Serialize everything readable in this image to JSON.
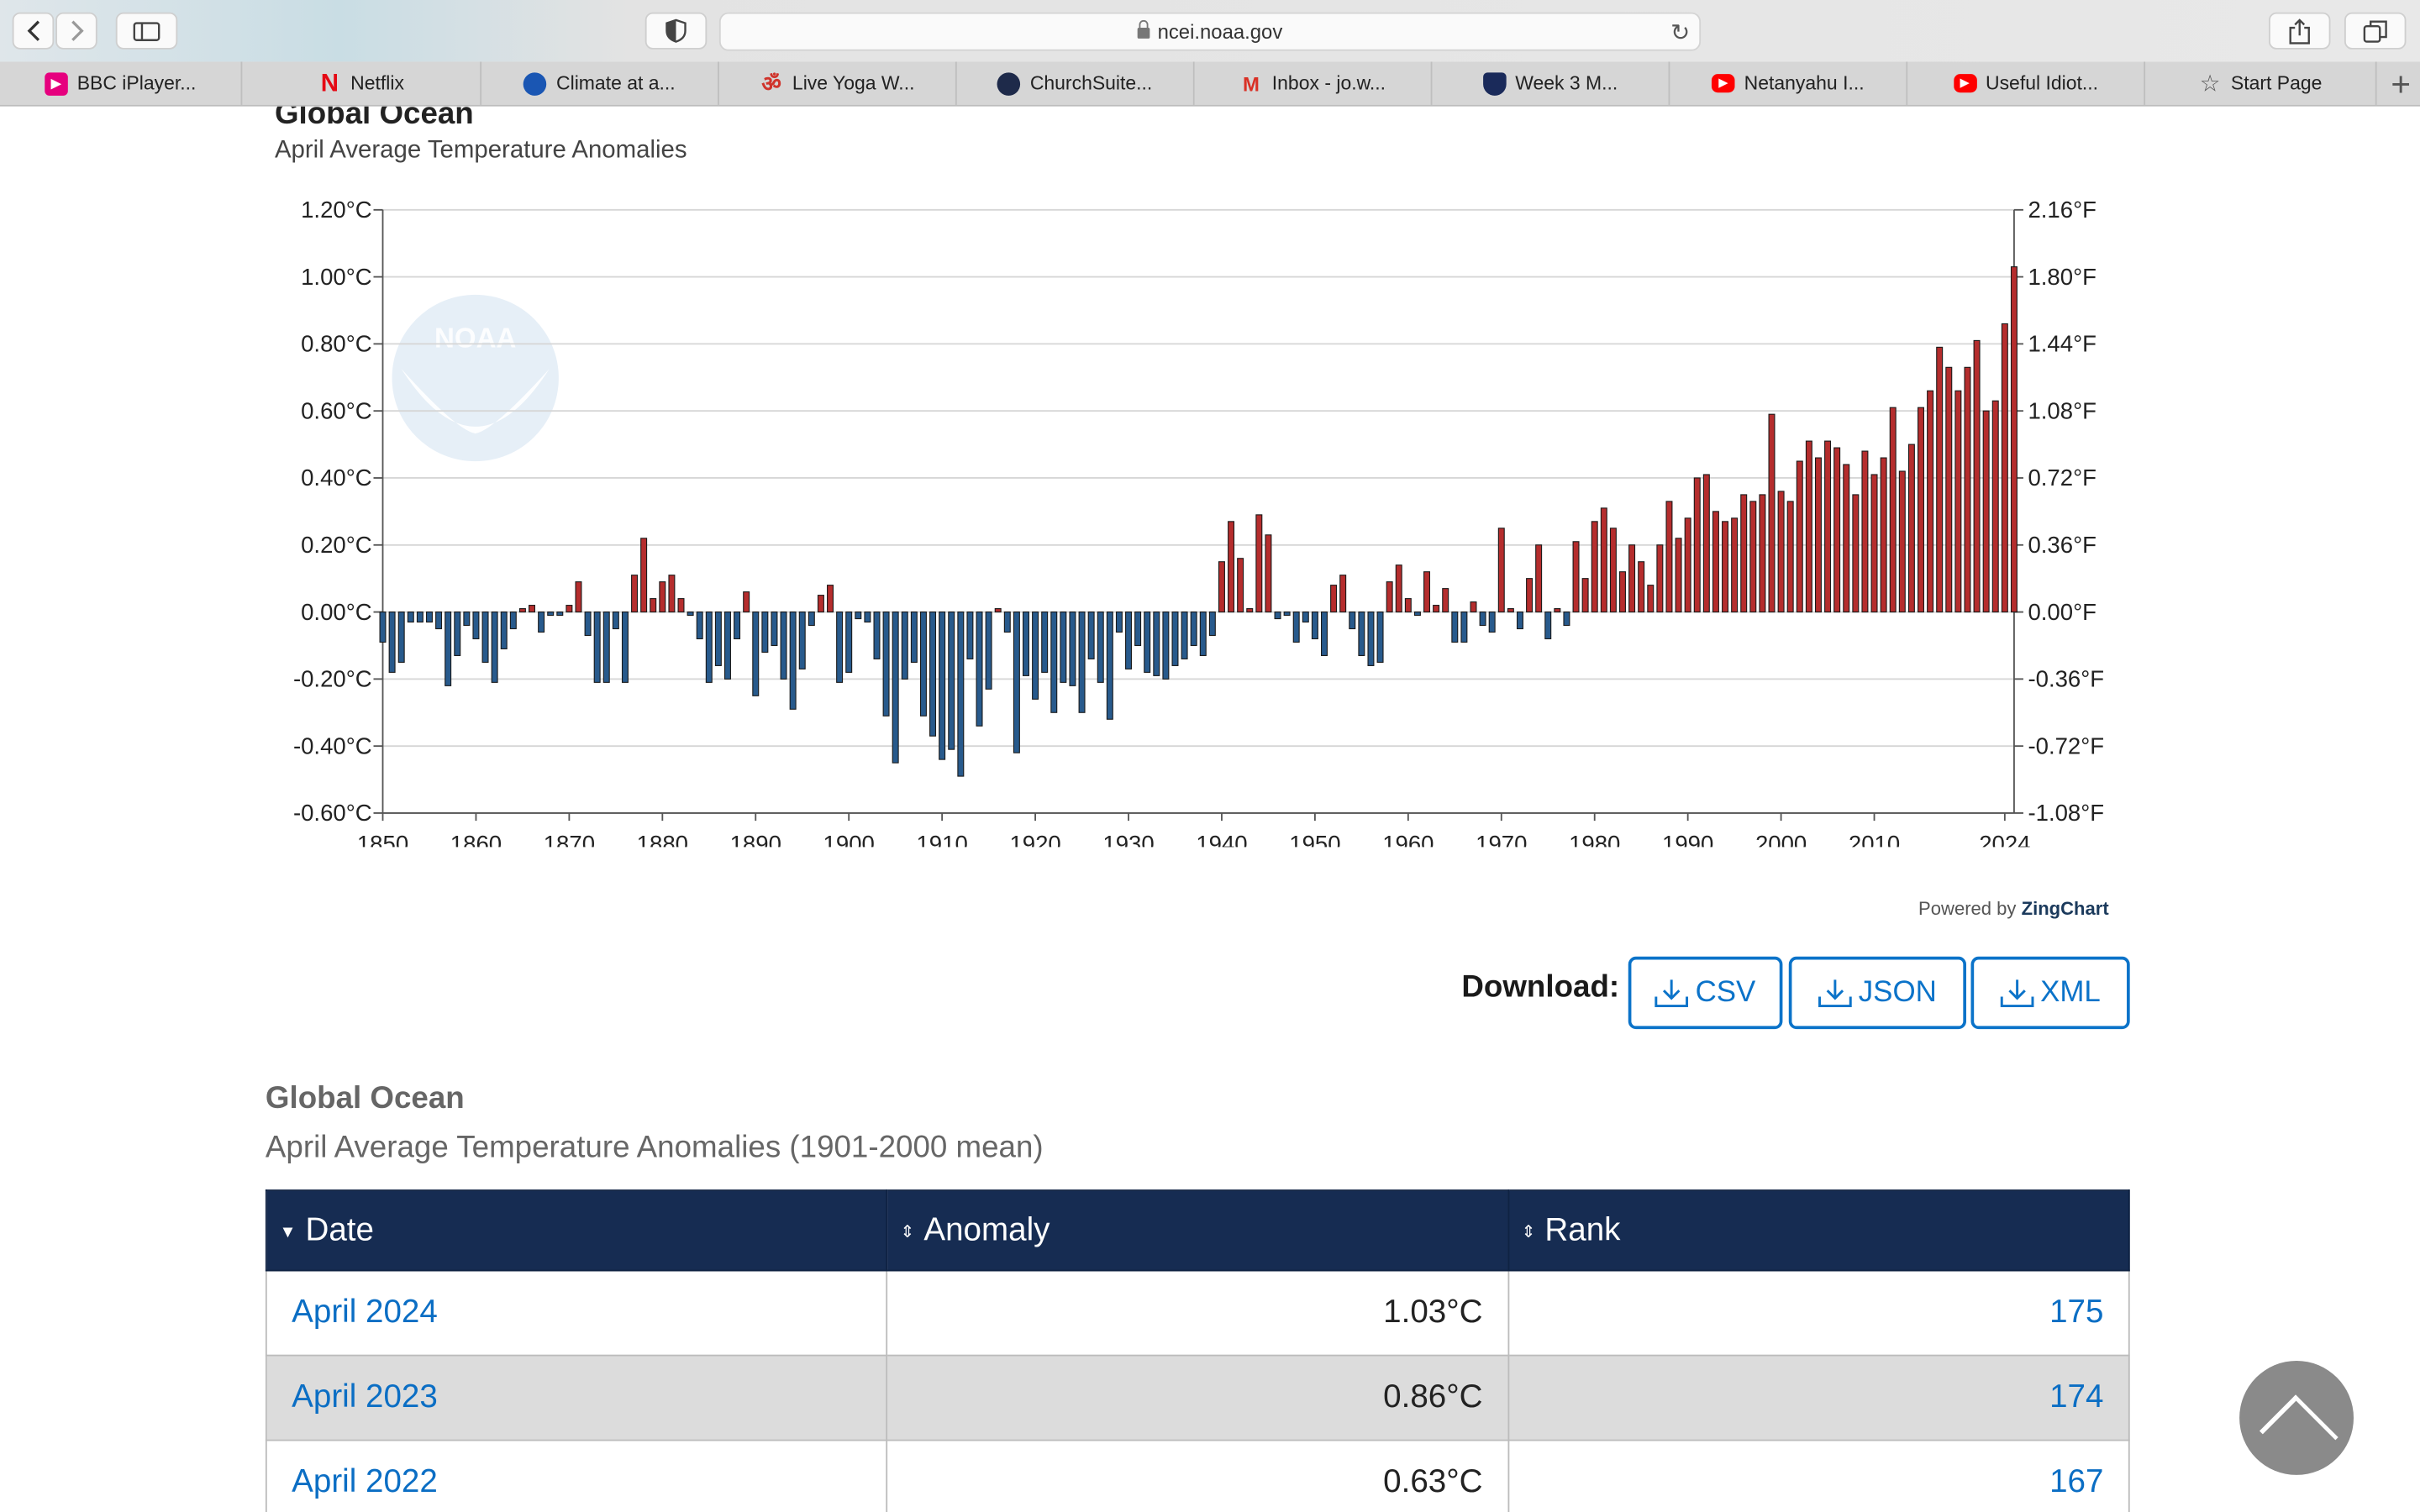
{
  "browser": {
    "url": "ncei.noaa.gov",
    "tabs": [
      {
        "label": "BBC iPlayer...",
        "icon": "bbc-iplayer-icon",
        "color": "#e6007e"
      },
      {
        "label": "Netflix",
        "icon": "netflix-icon",
        "color": "#e50914"
      },
      {
        "label": "Climate at a...",
        "icon": "noaa-icon",
        "color": "#1a56b3"
      },
      {
        "label": "Live Yoga W...",
        "icon": "om-icon",
        "color": "#d0342c"
      },
      {
        "label": "ChurchSuite...",
        "icon": "churchsuite-icon",
        "color": "#1e2a4a"
      },
      {
        "label": "Inbox - jo.w...",
        "icon": "gmail-icon",
        "color": "#d93025"
      },
      {
        "label": "Week 3    M...",
        "icon": "shield-icon",
        "color": "#1a2a5a"
      },
      {
        "label": "Netanyahu I...",
        "icon": "youtube-icon",
        "color": "#ff0000"
      },
      {
        "label": "Useful Idiot...",
        "icon": "youtube-icon",
        "color": "#ff0000"
      },
      {
        "label": "Start Page",
        "icon": "star-icon",
        "color": "#555555"
      }
    ]
  },
  "chart": {
    "title": "Global Ocean",
    "subtitle": "April Average Temperature Anomalies",
    "logo_text": "NOAA",
    "powered_prefix": "Powered by",
    "powered_brand": "ZingChart"
  },
  "chart_data": {
    "type": "bar",
    "title": "Global Ocean",
    "subtitle": "April Average Temperature Anomalies",
    "ylim": [
      -0.6,
      1.2
    ],
    "yticks_left": [
      "1.20°C",
      "1.00°C",
      "0.80°C",
      "0.60°C",
      "0.40°C",
      "0.20°C",
      "0.00°C",
      "-0.20°C",
      "-0.40°C",
      "-0.60°C"
    ],
    "yticks_right": [
      "2.16°F",
      "1.80°F",
      "1.44°F",
      "1.08°F",
      "0.72°F",
      "0.36°F",
      "0.00°F",
      "-0.36°F",
      "-0.72°F",
      "-1.08°F"
    ],
    "xticks": [
      "1850",
      "1860",
      "1870",
      "1880",
      "1890",
      "1900",
      "1910",
      "1920",
      "1930",
      "1940",
      "1950",
      "1960",
      "1970",
      "1980",
      "1990",
      "2000",
      "2010",
      "2024"
    ],
    "x_start": 1850,
    "x_end": 2024,
    "positive_color": "#b52d2d",
    "negative_color": "#285a8c",
    "grid": true,
    "values": [
      -0.09,
      -0.18,
      -0.15,
      -0.03,
      -0.03,
      -0.03,
      -0.05,
      -0.22,
      -0.13,
      -0.04,
      -0.08,
      -0.15,
      -0.21,
      -0.11,
      -0.05,
      0.01,
      0.02,
      -0.06,
      -0.01,
      -0.01,
      0.02,
      0.09,
      -0.07,
      -0.21,
      -0.21,
      -0.05,
      -0.21,
      0.11,
      0.22,
      0.04,
      0.09,
      0.11,
      0.04,
      -0.01,
      -0.08,
      -0.21,
      -0.16,
      -0.2,
      -0.08,
      0.06,
      -0.25,
      -0.12,
      -0.1,
      -0.2,
      -0.29,
      -0.17,
      -0.04,
      0.05,
      0.08,
      -0.21,
      -0.18,
      -0.02,
      -0.03,
      -0.14,
      -0.31,
      -0.45,
      -0.2,
      -0.15,
      -0.31,
      -0.37,
      -0.44,
      -0.41,
      -0.49,
      -0.14,
      -0.34,
      -0.23,
      0.01,
      -0.06,
      -0.42,
      -0.19,
      -0.26,
      -0.18,
      -0.3,
      -0.21,
      -0.22,
      -0.3,
      -0.14,
      -0.21,
      -0.32,
      -0.06,
      -0.17,
      -0.1,
      -0.18,
      -0.19,
      -0.2,
      -0.16,
      -0.14,
      -0.1,
      -0.13,
      -0.07,
      0.15,
      0.27,
      0.16,
      0.01,
      0.29,
      0.23,
      -0.02,
      -0.01,
      -0.09,
      -0.03,
      -0.08,
      -0.13,
      0.08,
      0.11,
      -0.05,
      -0.13,
      -0.16,
      -0.15,
      0.09,
      0.14,
      0.04,
      -0.01,
      0.12,
      0.02,
      0.07,
      -0.09,
      -0.09,
      0.03,
      -0.04,
      -0.06,
      0.25,
      0.01,
      -0.05,
      0.1,
      0.2,
      -0.08,
      0.01,
      -0.04,
      0.21,
      0.1,
      0.27,
      0.31,
      0.25,
      0.12,
      0.2,
      0.15,
      0.08,
      0.2,
      0.33,
      0.22,
      0.28,
      0.4,
      0.41,
      0.3,
      0.27,
      0.28,
      0.35,
      0.33,
      0.35,
      0.59,
      0.36,
      0.33,
      0.45,
      0.51,
      0.46,
      0.51,
      0.49,
      0.44,
      0.35,
      0.48,
      0.41,
      0.46,
      0.61,
      0.42,
      0.5,
      0.61,
      0.66,
      0.79,
      0.73,
      0.66,
      0.73,
      0.81,
      0.6,
      0.63,
      0.86,
      1.03
    ]
  },
  "download": {
    "label": "Download:",
    "buttons": [
      "CSV",
      "JSON",
      "XML"
    ]
  },
  "table": {
    "title": "Global Ocean",
    "subtitle": "April Average Temperature Anomalies (1901-2000 mean)",
    "columns": [
      "Date",
      "Anomaly",
      "Rank"
    ],
    "rows": [
      {
        "date": "April 2024",
        "anomaly": "1.03°C",
        "rank": "175"
      },
      {
        "date": "April 2023",
        "anomaly": "0.86°C",
        "rank": "174"
      },
      {
        "date": "April 2022",
        "anomaly": "0.63°C",
        "rank": "167"
      }
    ]
  }
}
